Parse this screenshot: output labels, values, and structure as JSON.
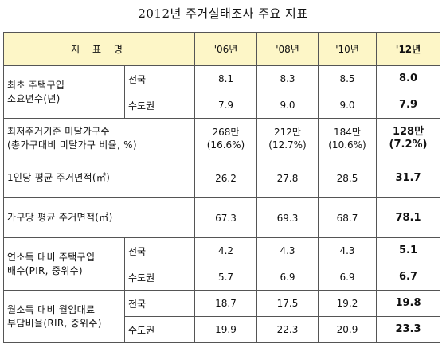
{
  "title": "2012년 주거실태조사 주요 지표",
  "header": {
    "name": "지 표 명",
    "years": [
      "'06년",
      "'08년",
      "'10년",
      "'12년"
    ]
  },
  "rows": [
    {
      "label": "최초 주택구입 소요년수(년)",
      "label_lines": [
        "최초 주택구입",
        "소요년수(년)"
      ],
      "sub": [
        {
          "name": "전국",
          "values": [
            "8.1",
            "8.3",
            "8.5",
            "8.0"
          ]
        },
        {
          "name": "수도권",
          "values": [
            "7.9",
            "9.0",
            "9.0",
            "7.9"
          ]
        }
      ]
    },
    {
      "label": "최저주거기준 미달가구수 (총가구대비 미달가구 비율, %)",
      "label_lines": [
        "최저주거기준 미달가구수",
        "(총가구대비 미달가구 비율, %)"
      ],
      "values": [
        [
          "268만",
          "(16.6%)"
        ],
        [
          "212만",
          "(12.7%)"
        ],
        [
          "184만",
          "(10.6%)"
        ],
        [
          "128만",
          "(7.2%)"
        ]
      ]
    },
    {
      "label": "1인당 평균 주거면적(㎡)",
      "label_lines": [
        "1인당 평균 주거면적(㎡)"
      ],
      "values": [
        [
          "26.2"
        ],
        [
          "27.8"
        ],
        [
          "28.5"
        ],
        [
          "31.7"
        ]
      ]
    },
    {
      "label": "가구당 평균 주거면적(㎡)",
      "label_lines": [
        "가구당 평균 주거면적(㎡)"
      ],
      "values": [
        [
          "67.3"
        ],
        [
          "69.3"
        ],
        [
          "68.7"
        ],
        [
          "78.1"
        ]
      ]
    },
    {
      "label": "연소득 대비 주택구입배수(PIR, 중위수)",
      "label_lines": [
        "연소득 대비 주택구입",
        "배수(PIR, 중위수)"
      ],
      "sub": [
        {
          "name": "전국",
          "values": [
            "4.2",
            "4.3",
            "4.3",
            "5.1"
          ]
        },
        {
          "name": "수도권",
          "values": [
            "5.7",
            "6.9",
            "6.9",
            "6.7"
          ]
        }
      ]
    },
    {
      "label": "월소득 대비 월임대료 부담비율(RIR, 중위수)",
      "label_lines": [
        "월소득 대비 월임대료",
        "부담비율(RIR, 중위수)"
      ],
      "sub": [
        {
          "name": "전국",
          "values": [
            "18.7",
            "17.5",
            "19.2",
            "19.8"
          ]
        },
        {
          "name": "수도권",
          "values": [
            "19.9",
            "22.3",
            "20.9",
            "23.3"
          ]
        }
      ]
    }
  ],
  "colors": {
    "header_bg": "#fdf6c7",
    "border": "#555555"
  }
}
